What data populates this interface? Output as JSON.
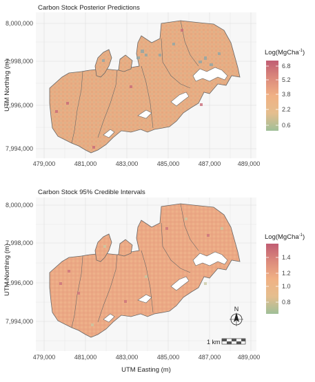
{
  "panels": [
    {
      "title": "Carbon Stock Posterior Predictions",
      "y_ticks": [
        "8,000,000",
        "7,998,000",
        "7,996,000",
        "7,994,000"
      ],
      "x_ticks": [
        "479,000",
        "481,000",
        "483,000",
        "485,000",
        "487,000",
        "489,000"
      ],
      "ylabel": "UTM Northing (m)",
      "legend": {
        "title_main": "Log(MgCha",
        "title_sup": "-1",
        "title_close": ")",
        "ticks": [
          "6.8",
          "5.2",
          "3.8",
          "2.2",
          "0.6"
        ],
        "colors": [
          "#c05d73",
          "#dc8a7c",
          "#f0b184",
          "#e5be8e",
          "#9fbf98"
        ]
      }
    },
    {
      "title": "Carbon Stock 95% Credible Intervals",
      "y_ticks": [
        "8,000,000",
        "7,998,000",
        "7,996,000",
        "7,994,000"
      ],
      "x_ticks": [
        "479,000",
        "481,000",
        "483,000",
        "485,000",
        "487,000",
        "489,000"
      ],
      "ylabel": "UTM Northing (m)",
      "xlabel": "UTM Easting (m)",
      "legend": {
        "title_main": "Log(MgCha",
        "title_sup": "-1",
        "title_close": ")",
        "ticks": [
          "1.4",
          "1.2",
          "1.0",
          "0.8"
        ],
        "colors": [
          "#c05d73",
          "#dc8a7c",
          "#f0b184",
          "#e5be8e",
          "#9fbf98"
        ]
      }
    }
  ],
  "north_arrow": "N",
  "scale_bar": "1 km",
  "colors": {
    "panel_bg": "#f7f7f7",
    "grid": "#e3e3e3",
    "map_fill_top": "#e9ae84",
    "map_fill_bottom": "#eaa884",
    "boundary": "#666666"
  }
}
